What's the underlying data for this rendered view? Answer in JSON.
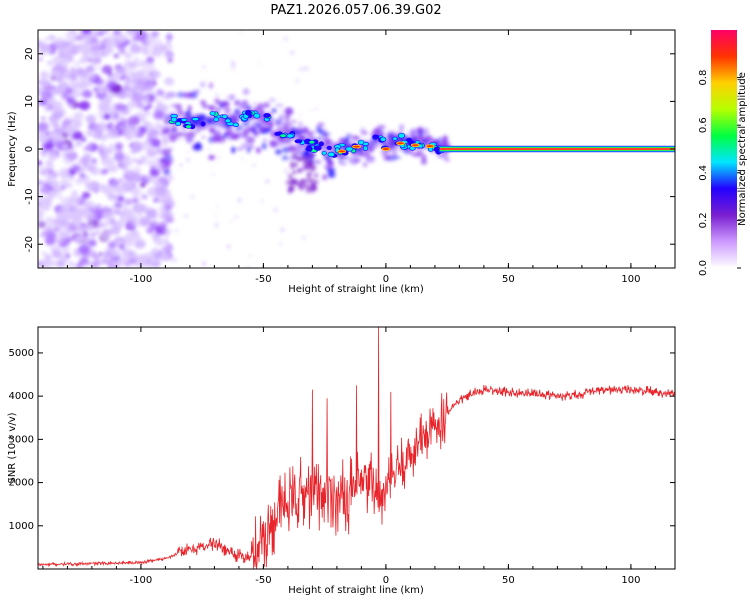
{
  "chart_data": {
    "title": "PAZ1.2026.057.06.39.G02",
    "panels": [
      {
        "type": "heatmap",
        "xlabel": "Height of straight line (km)",
        "ylabel": "Frequency (Hz)",
        "xlim": [
          -142,
          118
        ],
        "ylim": [
          -25,
          25
        ],
        "xticks": [
          -100,
          -50,
          0,
          50,
          100
        ],
        "yticks": [
          -20,
          -10,
          0,
          10,
          20
        ],
        "ridge": [
          {
            "x": -88,
            "y": 6
          },
          {
            "x": -80,
            "y": 5.5
          },
          {
            "x": -70,
            "y": 6.5
          },
          {
            "x": -62,
            "y": 6
          },
          {
            "x": -55,
            "y": 7.5
          },
          {
            "x": -48,
            "y": 6
          },
          {
            "x": -42,
            "y": 3
          },
          {
            "x": -35,
            "y": 1.5
          },
          {
            "x": -28,
            "y": 0.5
          },
          {
            "x": -20,
            "y": -0.5
          },
          {
            "x": -12,
            "y": 0.5
          },
          {
            "x": -6,
            "y": 0
          },
          {
            "x": -3,
            "y": 4
          },
          {
            "x": 0,
            "y": 0
          },
          {
            "x": 5,
            "y": 2
          },
          {
            "x": 10,
            "y": 1
          },
          {
            "x": 15,
            "y": 1
          },
          {
            "x": 20,
            "y": 0.5
          },
          {
            "x": 25,
            "y": 0
          },
          {
            "x": 118,
            "y": 0
          }
        ]
      },
      {
        "type": "line",
        "xlabel": "Height of straight line (km)",
        "ylabel": "SNR (10 * v/v)",
        "xlim": [
          -142,
          118
        ],
        "ylim": [
          0,
          5600
        ],
        "xticks": [
          -100,
          -50,
          0,
          50,
          100
        ],
        "yticks": [
          1000,
          2000,
          3000,
          4000,
          5000
        ],
        "color": "#e8242a",
        "series": [
          {
            "name": "SNR",
            "x": [
              -142,
              -100,
              -90,
              -80,
              -70,
              -60,
              -55,
              -50,
              -45,
              -40,
              -35,
              -30,
              -25,
              -20,
              -15,
              -10,
              -5,
              -3,
              0,
              5,
              10,
              15,
              20,
              25,
              30,
              35,
              40,
              50,
              60,
              70,
              80,
              90,
              100,
              110,
              118
            ],
            "values": [
              100,
              150,
              250,
              450,
              600,
              300,
              250,
              700,
              1300,
              1500,
              1750,
              1750,
              1800,
              1650,
              1700,
              1900,
              2000,
              1500,
              1800,
              2300,
              2700,
              3000,
              3300,
              3650,
              3900,
              4050,
              4150,
              4100,
              4050,
              4000,
              4050,
              4150,
              4150,
              4100,
              4050
            ]
          }
        ],
        "spikes": [
          {
            "x": -3,
            "y": 5600
          },
          {
            "x": -12,
            "y": 4250
          },
          {
            "x": -24,
            "y": 3950
          },
          {
            "x": -30,
            "y": 4150
          },
          {
            "x": 2,
            "y": 4100
          }
        ]
      }
    ],
    "colorbar": {
      "label": "Normalized spectral amplitude",
      "ticks": [
        "0.0",
        "0.2",
        "0.4",
        "0.6",
        "0.8"
      ],
      "tick_values": [
        0,
        0.2,
        0.4,
        0.6,
        0.8
      ],
      "range": [
        0,
        1
      ],
      "colors": [
        "#ffffff",
        "#cc99ff",
        "#7a1fd1",
        "#2400ff",
        "#00e5ff",
        "#00ff40",
        "#b6ff00",
        "#ffd000",
        "#ff3300",
        "#ff0066"
      ]
    }
  }
}
